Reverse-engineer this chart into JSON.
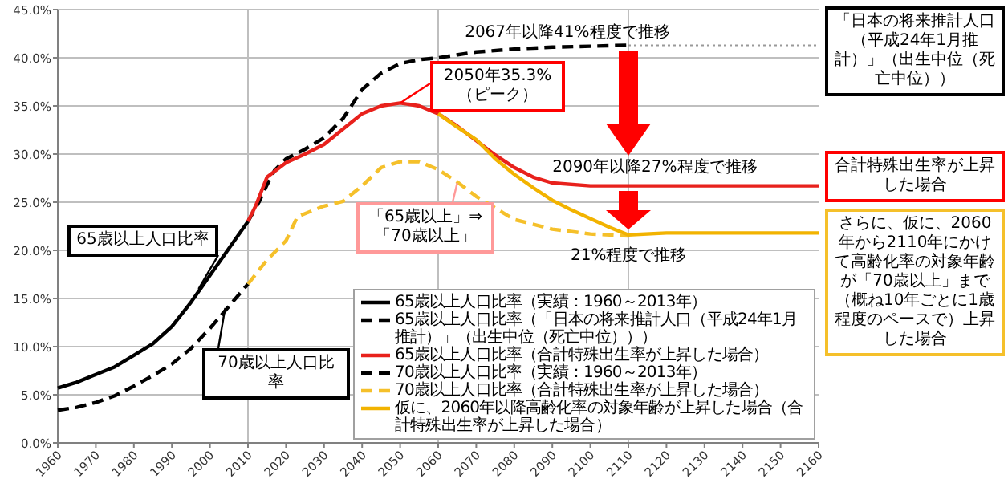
{
  "chart_data": {
    "type": "line",
    "xlim": [
      1960,
      2160
    ],
    "xticks": [
      1960,
      1970,
      1980,
      1990,
      2000,
      2010,
      2020,
      2030,
      2040,
      2050,
      2060,
      2070,
      2080,
      2090,
      2100,
      2110,
      2120,
      2130,
      2140,
      2150,
      2160
    ],
    "ylim": [
      0,
      45
    ],
    "yticks": [
      {
        "value": 0,
        "label": "0.0%"
      },
      {
        "value": 5,
        "label": "5.0%"
      },
      {
        "value": 10,
        "label": "10.0%"
      },
      {
        "value": 15,
        "label": "15.0%"
      },
      {
        "value": 20,
        "label": "20.0%"
      },
      {
        "value": 25,
        "label": "25.0%"
      },
      {
        "value": 30,
        "label": "30.0%"
      },
      {
        "value": 35,
        "label": "35.0%"
      },
      {
        "value": 40,
        "label": "40.0%"
      },
      {
        "value": 45,
        "label": "45.0%"
      }
    ],
    "grid": "y",
    "ref_lines": [
      {
        "axis": "x",
        "value": 2010,
        "color": "#bfbfbf"
      },
      {
        "axis": "x",
        "value": 2060,
        "color": "#bfbfbf"
      },
      {
        "axis": "x",
        "value": 2110,
        "color": "#bfbfbf"
      }
    ],
    "legend": "bottom right",
    "series": [
      {
        "name": "65歳以上人口比率（実績：1960～2013年）",
        "color": "#000000",
        "line_style": "solid",
        "x": [
          1960,
          1965,
          1970,
          1975,
          1980,
          1985,
          1990,
          1995,
          2000,
          2005,
          2010
        ],
        "values": [
          5.7,
          6.3,
          7.1,
          7.9,
          9.1,
          10.3,
          12.1,
          14.6,
          17.4,
          20.2,
          23.0
        ]
      },
      {
        "name": "65歳以上人口比率（「日本の将来推計人口（平成24年1月推計）」（出生中位（死亡中位）））",
        "color": "#000000",
        "line_style": "dashed",
        "x": [
          2010,
          2013,
          2015,
          2017,
          2020,
          2025,
          2030,
          2035,
          2040,
          2045,
          2050,
          2055,
          2060,
          2070,
          2080,
          2090,
          2100,
          2110
        ],
        "values": [
          23.0,
          25.1,
          26.8,
          28.3,
          29.5,
          30.5,
          31.7,
          33.7,
          36.7,
          38.4,
          39.4,
          39.8,
          40.0,
          40.6,
          40.9,
          41.1,
          41.2,
          41.3
        ]
      },
      {
        "name": "65歳以上人口比率（合計特殊出生率が上昇した場合）",
        "color": "#e8211c",
        "line_style": "solid",
        "x": [
          2010,
          2012,
          2015,
          2020,
          2025,
          2030,
          2035,
          2040,
          2045,
          2050,
          2055,
          2060,
          2065,
          2070,
          2075,
          2080,
          2085,
          2090,
          2100,
          2110,
          2160
        ],
        "values": [
          23.0,
          24.6,
          27.6,
          29.1,
          30.0,
          31.0,
          32.6,
          34.2,
          35.0,
          35.3,
          35.0,
          34.2,
          32.9,
          31.4,
          29.9,
          28.6,
          27.6,
          27.0,
          26.7,
          26.7,
          26.7
        ]
      },
      {
        "name": "70歳以上人口比率（実績：1960～2013年）",
        "color": "#000000",
        "line_style": "dashed",
        "x": [
          1960,
          1965,
          1970,
          1975,
          1980,
          1985,
          1990,
          1995,
          2000,
          2005,
          2010
        ],
        "values": [
          3.4,
          3.7,
          4.2,
          4.9,
          5.9,
          7.0,
          8.2,
          9.8,
          11.9,
          14.2,
          16.5
        ]
      },
      {
        "name": "70歳以上人口比率（合計特殊出生率が上昇した場合）",
        "color": "#f5c02a",
        "line_style": "dashed",
        "x": [
          2010,
          2015,
          2020,
          2023,
          2030,
          2035,
          2040,
          2045,
          2050,
          2055,
          2060,
          2065,
          2070,
          2080,
          2090,
          2100,
          2110
        ],
        "values": [
          16.5,
          19.0,
          21.0,
          23.5,
          24.6,
          25.1,
          26.7,
          28.6,
          29.2,
          29.2,
          28.4,
          27.1,
          25.6,
          23.2,
          22.2,
          21.7,
          21.5
        ]
      },
      {
        "name": "仮に、2060年以降高齢化率の対象年齢が上昇した場合（合計特殊出生率が上昇した場合）",
        "color": "#f2b300",
        "line_style": "solid",
        "x": [
          2060,
          2065,
          2070,
          2075,
          2080,
          2085,
          2090,
          2095,
          2100,
          2105,
          2110,
          2120,
          2160
        ],
        "values": [
          34.2,
          32.8,
          31.5,
          29.5,
          27.9,
          26.5,
          25.2,
          24.2,
          23.3,
          22.4,
          21.6,
          21.8,
          21.8
        ]
      },
      {
        "color": "#999999",
        "line_style": "dotted",
        "x": [
          2110,
          2160
        ],
        "values": [
          41.3,
          41.3
        ]
      }
    ],
    "annotations": [
      {
        "text": "65歳以上人口比率",
        "x": 1997,
        "y": 16
      },
      {
        "text": "70歳以上人口比率",
        "x": 2004,
        "y": 14
      },
      {
        "text": "2050年35.3%（ピーク）",
        "x": 2050,
        "y": 35.3
      },
      {
        "text": "「65歳以上」⇒「70歳以上」",
        "x": 2065,
        "y": 27
      },
      {
        "text": "2067年以降41%程度で推移",
        "x": 2067,
        "y": 41
      },
      {
        "text": "2090年以降27%程度で推移",
        "x": 2090,
        "y": 27
      },
      {
        "text": "21%程度で推移",
        "x": 2110,
        "y": 21
      },
      "「日本の将来推計人口（平成24年1月推計）」（出生中位（死亡中位））",
      "合計特殊出生率が上昇した場合",
      "さらに、仮に、2060年から2110年にかけて高齢化率の対象年齢が「70歳以上」まで（概ね10年ごとに1歳程度のペースで）上昇した場合"
    ]
  }
}
